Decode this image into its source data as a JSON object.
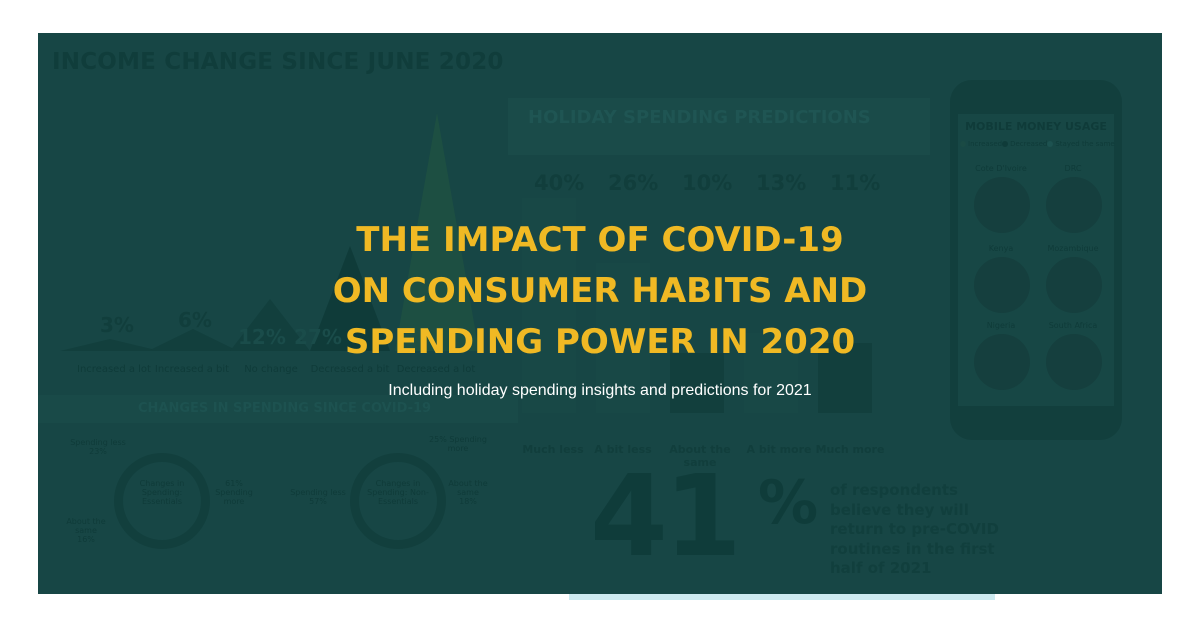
{
  "colors": {
    "panel": "#174645",
    "title": "#f0b924",
    "subtitle": "#ffffff",
    "strip": "#cdeaf0"
  },
  "headline": {
    "lines": [
      "THE IMPACT OF COVID-19",
      "ON CONSUMER HABITS AND",
      "SPENDING POWER IN 2020"
    ],
    "subtitle": "Including holiday spending insights and predictions for 2021"
  },
  "background": {
    "income": {
      "title": "INCOME CHANGE SINCE JUNE 2020",
      "items": [
        {
          "label": "Increased a lot",
          "value": "3%"
        },
        {
          "label": "Increased a bit",
          "value": "6%"
        },
        {
          "label": "No change",
          "value": "12%"
        },
        {
          "label": "Decreased a bit",
          "value": "27%"
        },
        {
          "label": "Decreased a lot",
          "value": ""
        }
      ]
    },
    "spending": {
      "title": "CHANGES IN SPENDING SINCE COVID-19",
      "essentials": {
        "center": "Changes in Spending: Essentials",
        "less": "Spending less 23%",
        "more": "61% Spending more",
        "same": "About the same 16%"
      },
      "non_essentials": {
        "center": "Changes in Spending: Non-Essentials",
        "less": "Spending less 57%",
        "more": "25% Spending more",
        "same": "About the same 18%"
      }
    },
    "holiday": {
      "title": "HOLIDAY SPENDING PREDICTIONS",
      "items": [
        {
          "label": "Much less",
          "value": "40%"
        },
        {
          "label": "A bit less",
          "value": "26%"
        },
        {
          "label": "About the same",
          "value": "10%"
        },
        {
          "label": "A bit more",
          "value": "13%"
        },
        {
          "label": "Much more",
          "value": "11%"
        }
      ]
    },
    "mobile": {
      "title": "MOBILE MONEY USAGE",
      "legend": [
        "Increased",
        "Decreased",
        "Stayed the same"
      ],
      "countries": [
        "Cote D'Ivoire",
        "DRC",
        "Kenya",
        "Mozambique",
        "Nigeria",
        "South Africa"
      ]
    },
    "return": {
      "value": "41",
      "unit": "%",
      "text": "of respondents believe they will return to pre-COVID routines in the first half of 2021"
    }
  }
}
